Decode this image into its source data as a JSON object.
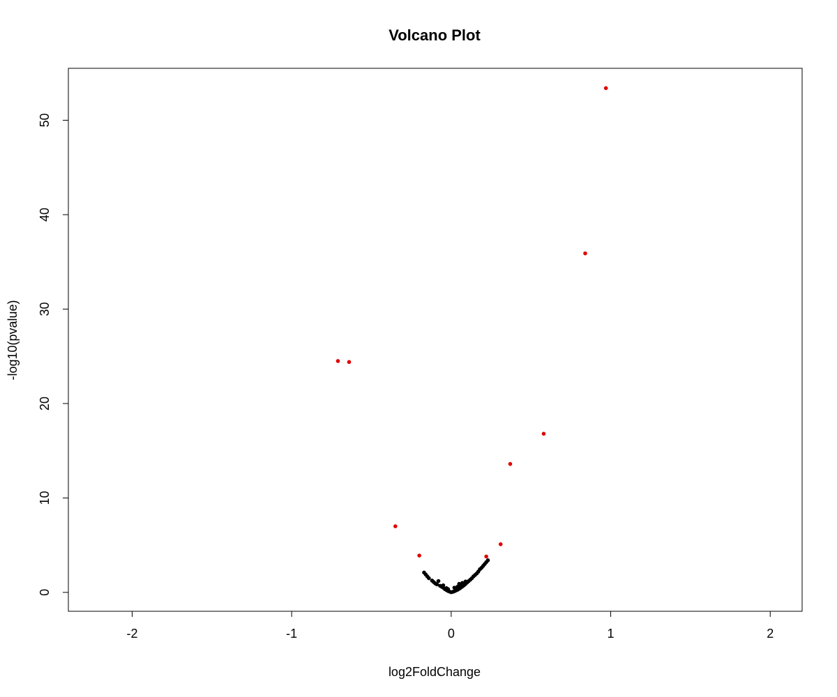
{
  "chart_data": {
    "type": "scatter",
    "title": "Volcano Plot",
    "xlabel": "log2FoldChange",
    "ylabel": "-log10(pvalue)",
    "xlim": [
      -2.4,
      2.2
    ],
    "ylim": [
      -2,
      55.5
    ],
    "x_ticks": [
      -2,
      -1,
      0,
      1,
      2
    ],
    "x_tick_labels": [
      "-2",
      "-1",
      "0",
      "1",
      "2"
    ],
    "y_ticks": [
      0,
      10,
      20,
      30,
      40,
      50
    ],
    "y_tick_labels": [
      "0",
      "10",
      "20",
      "30",
      "40",
      "50"
    ],
    "grid": false,
    "legend": "none",
    "series": [
      {
        "color": "#e00000",
        "points": [
          {
            "x": 0.97,
            "y": 53.4
          },
          {
            "x": 0.84,
            "y": 35.9
          },
          {
            "x": -0.71,
            "y": 24.5
          },
          {
            "x": -0.64,
            "y": 24.4
          },
          {
            "x": 0.58,
            "y": 16.8
          },
          {
            "x": 0.37,
            "y": 13.6
          },
          {
            "x": -0.35,
            "y": 7.0
          },
          {
            "x": 0.31,
            "y": 5.1
          },
          {
            "x": -0.2,
            "y": 3.9
          },
          {
            "x": 0.22,
            "y": 3.8
          }
        ]
      },
      {
        "color": "#000000",
        "points": [
          {
            "x": -0.17,
            "y": 2.1
          },
          {
            "x": -0.16,
            "y": 1.9
          },
          {
            "x": -0.15,
            "y": 1.7
          },
          {
            "x": -0.14,
            "y": 1.5
          },
          {
            "x": -0.12,
            "y": 1.25
          },
          {
            "x": -0.11,
            "y": 1.1
          },
          {
            "x": -0.08,
            "y": 1.2
          },
          {
            "x": -0.1,
            "y": 0.95
          },
          {
            "x": -0.09,
            "y": 0.85
          },
          {
            "x": -0.07,
            "y": 0.7
          },
          {
            "x": -0.06,
            "y": 0.6
          },
          {
            "x": -0.05,
            "y": 0.5
          },
          {
            "x": -0.04,
            "y": 0.35
          },
          {
            "x": -0.03,
            "y": 0.25
          },
          {
            "x": -0.02,
            "y": 0.15
          },
          {
            "x": -0.01,
            "y": 0.08
          },
          {
            "x": 0.0,
            "y": 0.02
          },
          {
            "x": 0.01,
            "y": 0.06
          },
          {
            "x": 0.02,
            "y": 0.12
          },
          {
            "x": 0.03,
            "y": 0.2
          },
          {
            "x": 0.04,
            "y": 0.28
          },
          {
            "x": 0.05,
            "y": 0.38
          },
          {
            "x": 0.06,
            "y": 0.5
          },
          {
            "x": 0.07,
            "y": 0.62
          },
          {
            "x": 0.08,
            "y": 0.75
          },
          {
            "x": 0.09,
            "y": 0.9
          },
          {
            "x": 0.1,
            "y": 1.05
          },
          {
            "x": 0.11,
            "y": 1.2
          },
          {
            "x": 0.12,
            "y": 1.35
          },
          {
            "x": 0.13,
            "y": 1.5
          },
          {
            "x": 0.14,
            "y": 1.7
          },
          {
            "x": 0.15,
            "y": 1.85
          },
          {
            "x": 0.16,
            "y": 2.0
          },
          {
            "x": 0.17,
            "y": 2.2
          },
          {
            "x": 0.18,
            "y": 2.45
          },
          {
            "x": 0.19,
            "y": 2.6
          },
          {
            "x": 0.2,
            "y": 2.8
          },
          {
            "x": 0.21,
            "y": 3.0
          },
          {
            "x": 0.22,
            "y": 3.2
          },
          {
            "x": 0.23,
            "y": 3.4
          },
          {
            "x": 0.05,
            "y": 0.9
          },
          {
            "x": 0.07,
            "y": 1.0
          },
          {
            "x": 0.09,
            "y": 1.15
          },
          {
            "x": -0.05,
            "y": 0.75
          },
          {
            "x": -0.03,
            "y": 0.45
          },
          {
            "x": 0.02,
            "y": 0.5
          },
          {
            "x": 0.03,
            "y": 0.35
          },
          {
            "x": -0.02,
            "y": 0.35
          },
          {
            "x": 0.04,
            "y": 0.6
          },
          {
            "x": 0.06,
            "y": 0.75
          }
        ]
      }
    ]
  }
}
